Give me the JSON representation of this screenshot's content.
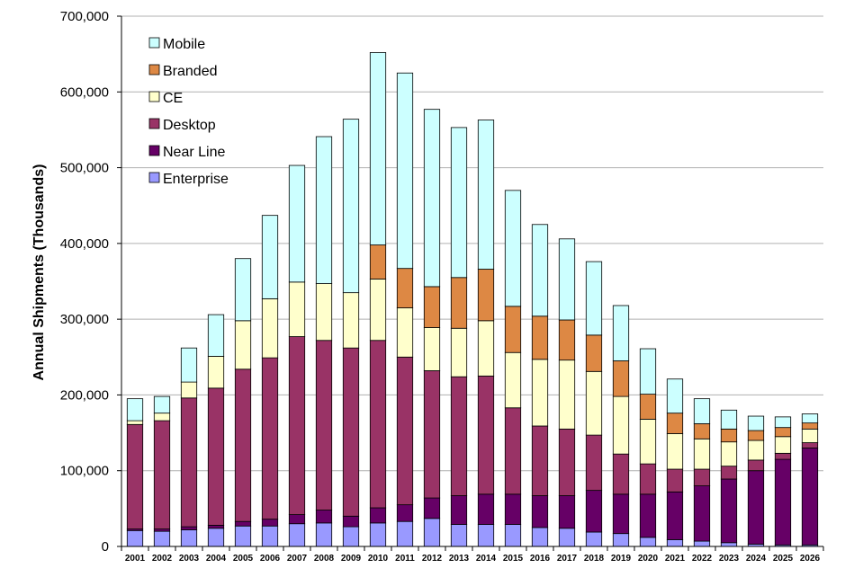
{
  "chart_data": {
    "type": "bar",
    "stacked": true,
    "title": "",
    "xlabel": "",
    "ylabel": "Annual Shipments (Thousands)",
    "ylim": [
      0,
      700000
    ],
    "yticks": [
      0,
      100000,
      200000,
      300000,
      400000,
      500000,
      600000,
      700000
    ],
    "ytick_labels": [
      "0",
      "100,000",
      "200,000",
      "300,000",
      "400,000",
      "500,000",
      "600,000",
      "700,000"
    ],
    "grid": true,
    "legend_position": "top-left",
    "categories": [
      "2001",
      "2002",
      "2003",
      "2004",
      "2005",
      "2006",
      "2007",
      "2008",
      "2009",
      "2010",
      "2011",
      "2012",
      "2013",
      "2014",
      "2015",
      "2016",
      "2017",
      "2018",
      "2019",
      "2020",
      "2021",
      "2022",
      "2023",
      "2024",
      "2025",
      "2026"
    ],
    "series": [
      {
        "name": "Enterprise",
        "color": "#9999ff",
        "values": [
          21000,
          20000,
          22000,
          24000,
          27000,
          27000,
          30000,
          31000,
          26000,
          31000,
          33000,
          37000,
          29000,
          29000,
          29000,
          25000,
          24000,
          19000,
          17000,
          12000,
          9000,
          7000,
          5000,
          3000,
          2000,
          2000
        ]
      },
      {
        "name": "Near Line",
        "color": "#660066",
        "values": [
          2000,
          3000,
          4000,
          4000,
          6000,
          9000,
          12000,
          17000,
          14000,
          20000,
          22000,
          27000,
          38000,
          40000,
          40000,
          42000,
          43000,
          55000,
          52000,
          57000,
          63000,
          73000,
          84000,
          97000,
          113000,
          128000
        ]
      },
      {
        "name": "Desktop",
        "color": "#993366",
        "values": [
          138000,
          143000,
          170000,
          181000,
          201000,
          213000,
          235000,
          224000,
          222000,
          221000,
          195000,
          168000,
          157000,
          156000,
          114000,
          92000,
          88000,
          73000,
          53000,
          40000,
          30000,
          22000,
          17000,
          14000,
          8000,
          7000
        ]
      },
      {
        "name": "CE",
        "color": "#ffffcc",
        "values": [
          5000,
          10000,
          21000,
          42000,
          64000,
          78000,
          72000,
          75000,
          73000,
          81000,
          65000,
          57000,
          64000,
          73000,
          73000,
          88000,
          91000,
          84000,
          76000,
          59000,
          47000,
          40000,
          32000,
          26000,
          22000,
          18000
        ]
      },
      {
        "name": "Branded",
        "color": "#dd8844",
        "values": [
          0,
          0,
          0,
          0,
          0,
          0,
          0,
          0,
          0,
          45000,
          52000,
          54000,
          67000,
          68000,
          61000,
          57000,
          53000,
          48000,
          47000,
          33000,
          27000,
          20000,
          17000,
          13000,
          12000,
          8000
        ]
      },
      {
        "name": "Mobile",
        "color": "#ccffff",
        "values": [
          29000,
          22000,
          45000,
          55000,
          82000,
          110000,
          154000,
          194000,
          229000,
          254000,
          258000,
          234000,
          198000,
          197000,
          153000,
          121000,
          107000,
          97000,
          73000,
          60000,
          45000,
          33000,
          25000,
          19000,
          14000,
          12000
        ]
      }
    ],
    "legend": [
      "Mobile",
      "Branded",
      "CE",
      "Desktop",
      "Near Line",
      "Enterprise"
    ]
  }
}
